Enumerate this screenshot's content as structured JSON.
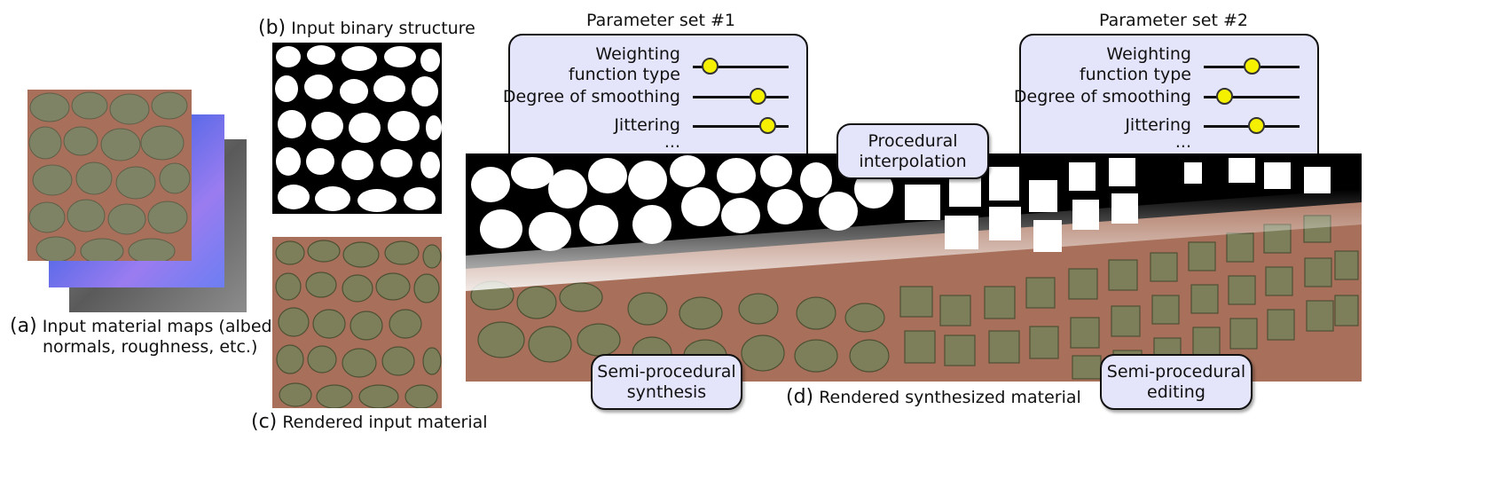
{
  "captions": {
    "a_letter": "(a)",
    "a_line1": "Input material maps (albedo,",
    "a_line2": "normals, roughness, etc.)",
    "b_letter": "(b)",
    "b_text": "Input binary structure",
    "c_letter": "(c)",
    "c_text": "Rendered input material",
    "d_letter": "(d)",
    "d_text": "Rendered synthesized material"
  },
  "param_set_1": {
    "title": "Parameter set #1",
    "rows": [
      {
        "label_line1": "Weighting",
        "label_line2": "function type",
        "value": 0.18
      },
      {
        "label": "Degree of smoothing",
        "value": 0.68
      },
      {
        "label": "Jittering",
        "value": 0.78
      }
    ],
    "ellipsis": "..."
  },
  "param_set_2": {
    "title": "Parameter set #2",
    "rows": [
      {
        "label_line1": "Weighting",
        "label_line2": "function type",
        "value": 0.5
      },
      {
        "label": "Degree of smoothing",
        "value": 0.22
      },
      {
        "label": "Jittering",
        "value": 0.55
      }
    ],
    "ellipsis": "..."
  },
  "bubbles": {
    "procedural_line1": "Procedural",
    "procedural_line2": "interpolation",
    "synthesis_line1": "Semi-procedural",
    "synthesis_line2": "synthesis",
    "editing_line1": "Semi-procedural",
    "editing_line2": "editing"
  },
  "colors": {
    "panel_fill": "#e4e4fb",
    "slider_knob": "#f5f000",
    "stone": "#7d7f5a",
    "mortar": "#a8705a"
  }
}
